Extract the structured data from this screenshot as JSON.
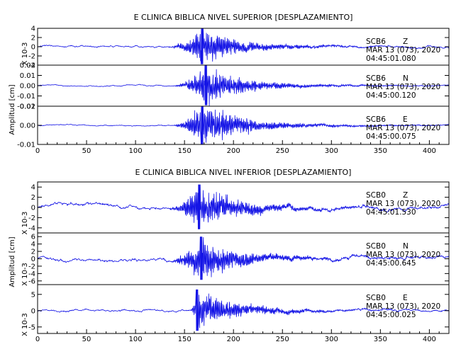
{
  "chart_data": [
    {
      "type": "line",
      "title": "E CLINICA BIBLICA NIVEL SUPERIOR [DESPLAZAMIENTO]",
      "xlim": [
        0,
        420
      ],
      "x_ticks": [
        "0",
        "50",
        "100",
        "150",
        "200",
        "250",
        "300",
        "350",
        "400"
      ],
      "ylabel": "Amplitud [cm]",
      "panels": [
        {
          "station": "SCB6",
          "component": "Z",
          "date": "MAR 13 (073), 2020",
          "time": "04:45:01.080",
          "yscale_label": "X 10-3",
          "ylim": [
            -4,
            4
          ],
          "y_ticks": [
            "4",
            "2",
            "0",
            "-2",
            "-4"
          ],
          "peak_amplitude": 4.0,
          "noise_amplitude": 0.45,
          "onset_s": 130,
          "peak_s": 168
        },
        {
          "station": "SCB6",
          "component": "N",
          "date": "MAR 13 (073), 2020",
          "time": "04:45:00.120",
          "yscale_label": "",
          "ylim": [
            -0.02,
            0.02
          ],
          "y_ticks": [
            "0.02",
            "0.01",
            "0.00",
            "-0.01",
            "-0.02"
          ],
          "peak_amplitude": 0.02,
          "noise_amplitude": 0.0012,
          "onset_s": 135,
          "peak_s": 172
        },
        {
          "station": "SCB6",
          "component": "E",
          "date": "MAR 13 (073), 2020",
          "time": "04:45:00.075",
          "yscale_label": "",
          "ylim": [
            -0.01,
            0.01
          ],
          "y_ticks": [
            "0.01",
            "0.00",
            "-0.01"
          ],
          "peak_amplitude": 0.013,
          "noise_amplitude": 0.0006,
          "onset_s": 135,
          "peak_s": 168
        }
      ]
    },
    {
      "type": "line",
      "title": "E CLINICA BIBLICA NIVEL INFERIOR [DESPLAZAMIENTO]",
      "xlim": [
        0,
        420
      ],
      "x_ticks": [
        "0",
        "50",
        "100",
        "150",
        "200",
        "250",
        "300",
        "350",
        "400"
      ],
      "ylabel": "Amplitud [cm]",
      "panels": [
        {
          "station": "SCB0",
          "component": "Z",
          "date": "MAR 13 (073), 2020",
          "time": "04:45:01.530",
          "yscale_label": "X 10-3",
          "ylim": [
            -5,
            5
          ],
          "y_ticks": [
            "4",
            "2",
            "0",
            "-2",
            "-4"
          ],
          "peak_amplitude": 4.5,
          "noise_amplitude": 0.8,
          "onset_s": 130,
          "peak_s": 165
        },
        {
          "station": "SCB0",
          "component": "N",
          "date": "MAR 13 (073), 2020",
          "time": "04:45:00.645",
          "yscale_label": "X 10-3",
          "ylim": [
            -7,
            7
          ],
          "y_ticks": [
            "6",
            "4",
            "2",
            "0",
            "-2",
            "-4",
            "-6"
          ],
          "peak_amplitude": 6.0,
          "noise_amplitude": 1.0,
          "onset_s": 130,
          "peak_s": 167
        },
        {
          "station": "SCB0",
          "component": "E",
          "date": "MAR 13 (073), 2020",
          "time": "04:45:00.025",
          "yscale_label": "X 10-3",
          "ylim": [
            -7,
            8
          ],
          "y_ticks": [
            "5",
            "0",
            "-5"
          ],
          "peak_amplitude": 6.5,
          "noise_amplitude": 0.7,
          "onset_s": 155,
          "peak_s": 163
        }
      ]
    }
  ]
}
